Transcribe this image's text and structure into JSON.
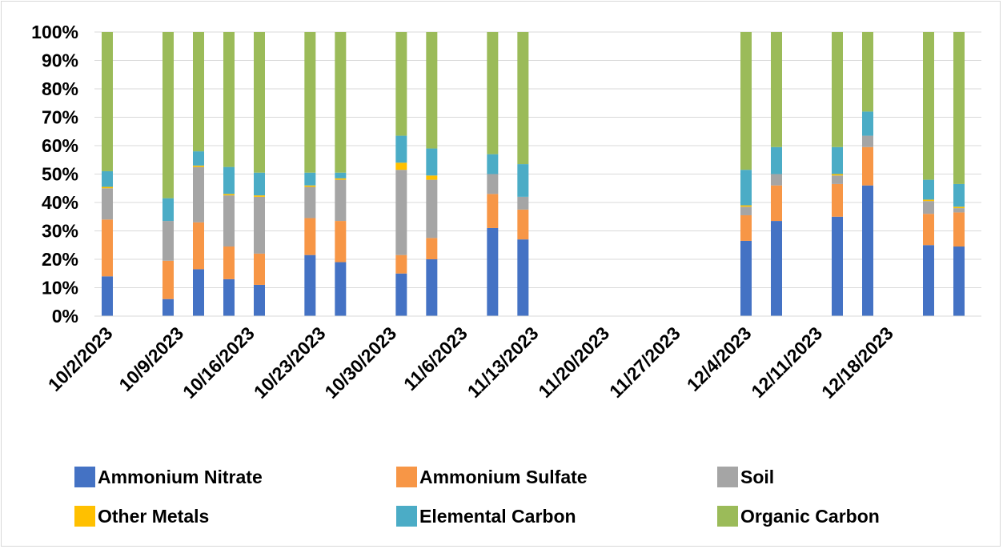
{
  "chart_data": {
    "type": "bar",
    "stacked": true,
    "normalized": true,
    "y_ticks": [
      "0%",
      "10%",
      "20%",
      "30%",
      "40%",
      "50%",
      "60%",
      "70%",
      "80%",
      "90%",
      "100%"
    ],
    "ylim": [
      0,
      100
    ],
    "grid": true,
    "legend_placement": "bottom",
    "x_tick_labels": [
      "10/2/2023",
      "10/9/2023",
      "10/16/2023",
      "10/23/2023",
      "10/30/2023",
      "11/6/2023",
      "11/13/2023",
      "11/20/2023",
      "11/27/2023",
      "12/4/2023",
      "12/11/2023",
      "12/18/2023"
    ],
    "x_dates": [
      "2023-10-02",
      "2023-10-08",
      "2023-10-11",
      "2023-10-14",
      "2023-10-17",
      "2023-10-22",
      "2023-10-25",
      "2023-10-31",
      "2023-11-03",
      "2023-11-09",
      "2023-11-12",
      "2023-12-04",
      "2023-12-07",
      "2023-12-13",
      "2023-12-16",
      "2023-12-22",
      "2023-12-25"
    ],
    "series": [
      {
        "name": "Ammonium Nitrate",
        "color": "#4472c4",
        "values": [
          14,
          6,
          16.5,
          13,
          11,
          21.5,
          19,
          15,
          20,
          31,
          27,
          26.5,
          33.5,
          35,
          46,
          25,
          24.5
        ]
      },
      {
        "name": "Ammonium Sulfate",
        "color": "#f79646",
        "values": [
          20,
          13.5,
          16.5,
          11.5,
          11,
          13,
          14.5,
          6.5,
          7.5,
          12,
          10.5,
          9,
          12.5,
          11.5,
          13.5,
          11,
          12
        ]
      },
      {
        "name": "Soil",
        "color": "#a5a5a5",
        "values": [
          11,
          14,
          19.5,
          18,
          20,
          11,
          14.5,
          30,
          20.5,
          7,
          4.5,
          3,
          4,
          3,
          4,
          4.5,
          1.5
        ]
      },
      {
        "name": "Other Metals",
        "color": "#ffc000",
        "values": [
          0.5,
          0,
          0.5,
          0.5,
          0.5,
          0.5,
          0.5,
          2.5,
          1.5,
          0,
          0,
          0.5,
          0,
          0.5,
          0,
          0.5,
          0.5
        ]
      },
      {
        "name": "Elemental Carbon",
        "color": "#4bacc6",
        "values": [
          5.5,
          8,
          5,
          9.5,
          8,
          4.5,
          2,
          9.5,
          9.5,
          7,
          11.5,
          12.5,
          9.5,
          9.5,
          8.5,
          7,
          8
        ]
      },
      {
        "name": "Organic Carbon",
        "color": "#9bbb59",
        "values": [
          49,
          58.5,
          42,
          47.5,
          49.5,
          49.5,
          49.5,
          36.5,
          41,
          43,
          46.5,
          48.5,
          40.5,
          40.5,
          28,
          52,
          53.5
        ]
      }
    ]
  },
  "legend": [
    {
      "label": "Ammonium Nitrate",
      "color": "#4472c4"
    },
    {
      "label": "Ammonium Sulfate",
      "color": "#f79646"
    },
    {
      "label": "Soil",
      "color": "#a5a5a5"
    },
    {
      "label": "Other Metals",
      "color": "#ffc000"
    },
    {
      "label": "Elemental Carbon",
      "color": "#4bacc6"
    },
    {
      "label": "Organic Carbon",
      "color": "#9bbb59"
    }
  ]
}
